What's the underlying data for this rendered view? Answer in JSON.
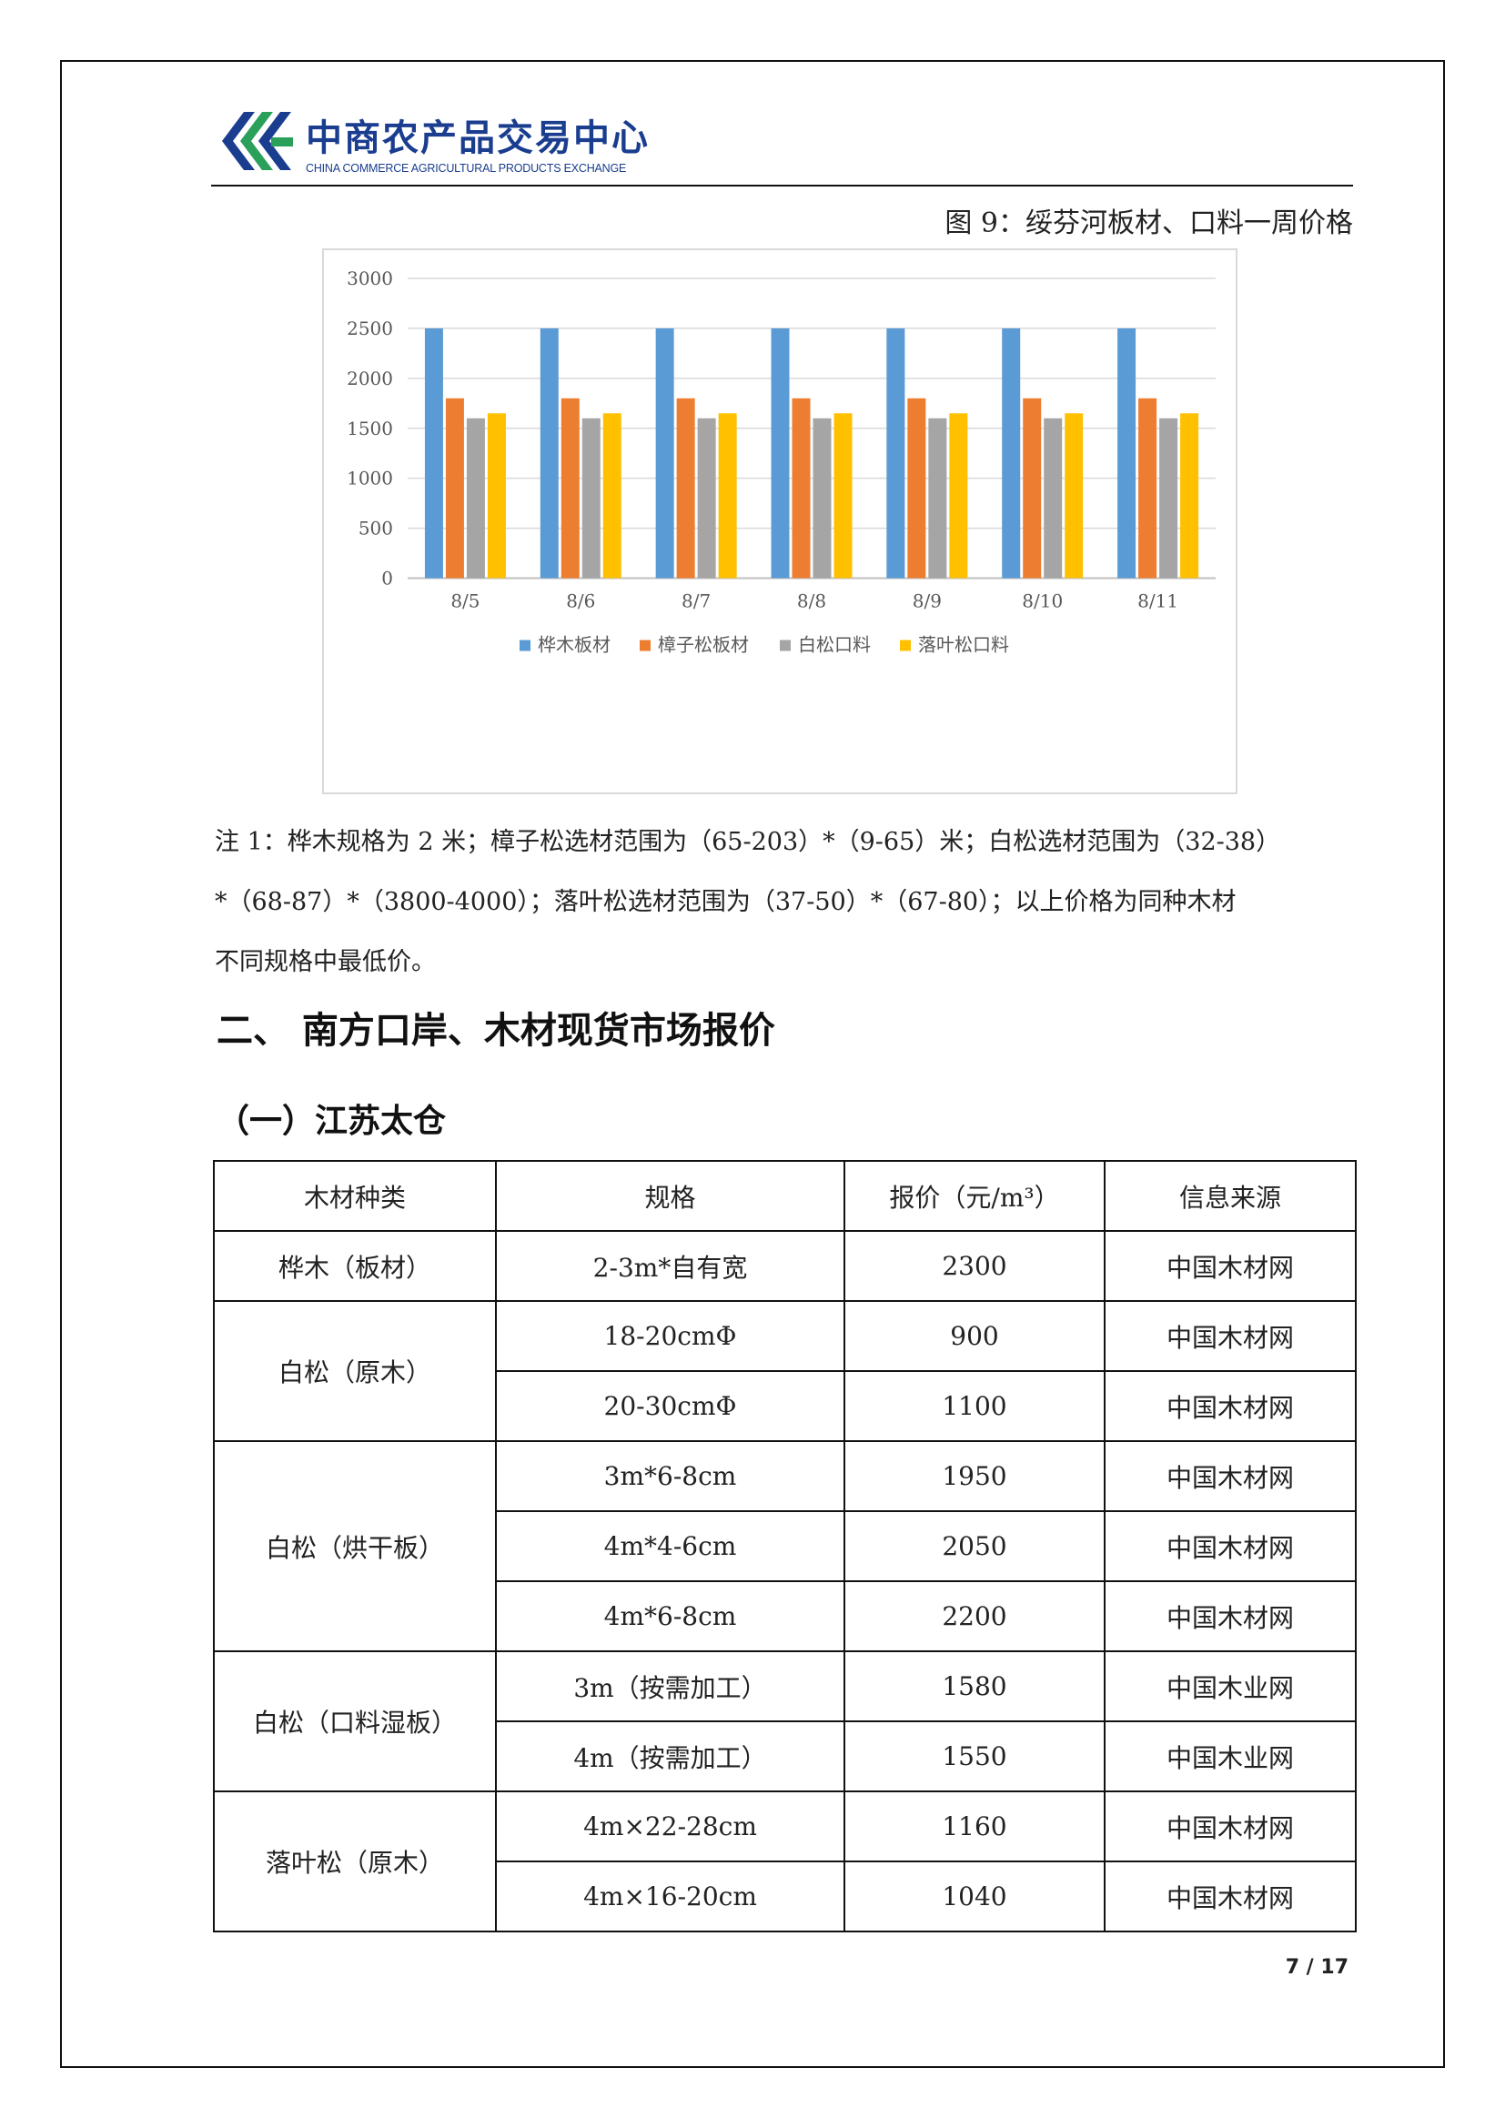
{
  "header": {
    "logo_cn": "中商农产品交易中心",
    "logo_en": "CHINA COMMERCE AGRICULTURAL PRODUCTS EXCHANGE",
    "brand_colors": [
      "#1a3d8f",
      "#2aa05a"
    ]
  },
  "figure": {
    "title": "图 9：绥芬河板材、口料一周价格"
  },
  "chart_data": {
    "type": "bar",
    "categories": [
      "8/5",
      "8/6",
      "8/7",
      "8/8",
      "8/9",
      "8/10",
      "8/11"
    ],
    "series": [
      {
        "name": "桦木板材",
        "color": "#5b9bd5",
        "values": [
          2500,
          2500,
          2500,
          2500,
          2500,
          2500,
          2500
        ]
      },
      {
        "name": "樟子松板材",
        "color": "#ed7d31",
        "values": [
          1800,
          1800,
          1800,
          1800,
          1800,
          1800,
          1800
        ]
      },
      {
        "name": "白松口料",
        "color": "#a5a5a5",
        "values": [
          1600,
          1600,
          1600,
          1600,
          1600,
          1600,
          1600
        ]
      },
      {
        "name": "落叶松口料",
        "color": "#ffc000",
        "values": [
          1650,
          1650,
          1650,
          1650,
          1650,
          1650,
          1650
        ]
      }
    ],
    "yticks": [
      "0",
      "500",
      "1000",
      "1500",
      "2000",
      "2500",
      "3000"
    ],
    "ylim": [
      0,
      3000
    ],
    "grid": true,
    "legend_position": "bottom"
  },
  "note": {
    "line1": "注 1：桦木规格为 2 米；樟子松选材范围为（65-203）*（9-65）米；白松选材范围为（32-38）",
    "line2": "*（68-87）*（3800-4000）；落叶松选材范围为（37-50）*（67-80）；以上价格为同种木材",
    "line3": "不同规格中最低价。"
  },
  "section": {
    "title": "二、 南方口岸、木材现货市场报价",
    "subtitle": "（一）江苏太仓"
  },
  "table": {
    "headers": [
      "木材种类",
      "规格",
      "报价（元/m³）",
      "信息来源"
    ],
    "groups": [
      {
        "type": "桦木（板材）",
        "rows": [
          {
            "spec": "2-3m*自有宽",
            "price": "2300",
            "source": "中国木材网"
          }
        ]
      },
      {
        "type": "白松（原木）",
        "rows": [
          {
            "spec": "18-20cmΦ",
            "price": "900",
            "source": "中国木材网"
          },
          {
            "spec": "20-30cmΦ",
            "price": "1100",
            "source": "中国木材网"
          }
        ]
      },
      {
        "type": "白松（烘干板）",
        "rows": [
          {
            "spec": "3m*6-8cm",
            "price": "1950",
            "source": "中国木材网"
          },
          {
            "spec": "4m*4-6cm",
            "price": "2050",
            "source": "中国木材网"
          },
          {
            "spec": "4m*6-8cm",
            "price": "2200",
            "source": "中国木材网"
          }
        ]
      },
      {
        "type": "白松（口料湿板）",
        "rows": [
          {
            "spec": "3m（按需加工）",
            "price": "1580",
            "source": "中国木业网"
          },
          {
            "spec": "4m（按需加工）",
            "price": "1550",
            "source": "中国木业网"
          }
        ]
      },
      {
        "type": "落叶松（原木）",
        "rows": [
          {
            "spec": "4m×22-28cm",
            "price": "1160",
            "source": "中国木材网"
          },
          {
            "spec": "4m×16-20cm",
            "price": "1040",
            "source": "中国木材网"
          }
        ]
      }
    ]
  },
  "footer": {
    "page": "7 / 17"
  }
}
